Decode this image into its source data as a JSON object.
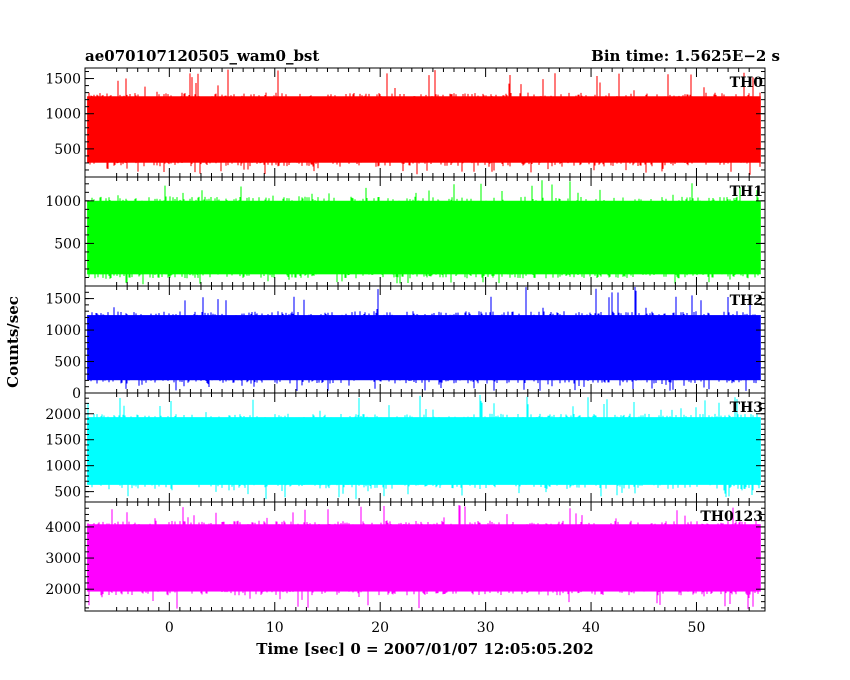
{
  "header": {
    "title": "ae070107120505_wam0_bst",
    "bin_time": "Bin time: 1.5625E−2 s"
  },
  "chart_data": {
    "type": "line",
    "xlabel": "Time [sec] 0 = 2007/01/07 12:05:05.202",
    "ylabel": "Counts/sec",
    "xlim": [
      -8,
      56.5
    ],
    "data_x_range": [
      -7.8,
      56.1
    ],
    "bin_time_s": 0.015625,
    "x_ticks": [
      "0",
      "10",
      "20",
      "30",
      "40",
      "50"
    ],
    "x_tick_values": [
      0,
      10,
      20,
      30,
      40,
      50
    ],
    "panels": [
      {
        "name": "TH0",
        "color": "#ff0000",
        "ylim": [
          100,
          1650
        ],
        "y_ticks": [
          "500",
          "1000",
          "1500"
        ],
        "y_tick_values": [
          500,
          1000,
          1500
        ],
        "mean": 780,
        "typical_low": 250,
        "typical_high": 1300,
        "min": 130,
        "max": 1640
      },
      {
        "name": "TH1",
        "color": "#00ff00",
        "ylim": [
          0,
          1280
        ],
        "y_ticks": [
          "500",
          "1000"
        ],
        "y_tick_values": [
          500,
          1000
        ],
        "mean": 560,
        "typical_low": 90,
        "typical_high": 1050,
        "min": 20,
        "max": 1270
      },
      {
        "name": "TH2",
        "color": "#0000ff",
        "ylim": [
          0,
          1700
        ],
        "y_ticks": [
          "0",
          "500",
          "1000",
          "1500"
        ],
        "y_tick_values": [
          0,
          500,
          1000,
          1500
        ],
        "mean": 680,
        "typical_low": 150,
        "typical_high": 1300,
        "min": 30,
        "max": 1690
      },
      {
        "name": "TH3",
        "color": "#00ffff",
        "ylim": [
          300,
          2400
        ],
        "y_ticks": [
          "500",
          "1000",
          "1500",
          "2000"
        ],
        "y_tick_values": [
          500,
          1000,
          1500,
          2000
        ],
        "mean": 1350,
        "typical_low": 550,
        "typical_high": 2000,
        "min": 350,
        "max": 2390
      },
      {
        "name": "TH0123",
        "color": "#ff00ff",
        "ylim": [
          1300,
          4800
        ],
        "y_ticks": [
          "2000",
          "3000",
          "4000"
        ],
        "y_tick_values": [
          2000,
          3000,
          4000
        ],
        "mean": 3050,
        "typical_low": 1800,
        "typical_high": 4200,
        "min": 1350,
        "max": 4750
      }
    ]
  }
}
